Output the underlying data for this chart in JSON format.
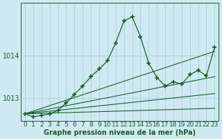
{
  "title": "Graphe pression niveau de la mer (hPa)",
  "background_color": "#ceeaf0",
  "grid_color": "#a8d0da",
  "line_color": "#1a5c2a",
  "xlim": [
    -0.5,
    23.5
  ],
  "ylim": [
    1012.45,
    1015.25
  ],
  "yticks": [
    1013,
    1014
  ],
  "xticks": [
    0,
    1,
    2,
    3,
    4,
    5,
    6,
    7,
    8,
    9,
    10,
    11,
    12,
    13,
    14,
    15,
    16,
    17,
    18,
    19,
    20,
    21,
    22,
    23
  ],
  "x_label_fontsize": 6.5,
  "y_label_fontsize": 7,
  "title_fontsize": 7,
  "series": [
    {
      "x": [
        0,
        23
      ],
      "y": [
        1012.62,
        1012.75
      ],
      "style": "line_only",
      "linewidth": 0.8
    },
    {
      "x": [
        0,
        23
      ],
      "y": [
        1012.62,
        1013.1
      ],
      "style": "line_only",
      "linewidth": 0.8
    },
    {
      "x": [
        0,
        23
      ],
      "y": [
        1012.62,
        1013.5
      ],
      "style": "line_only",
      "linewidth": 0.8
    },
    {
      "x": [
        0,
        23
      ],
      "y": [
        1012.62,
        1014.1
      ],
      "style": "line_only",
      "linewidth": 0.8
    },
    {
      "x": [
        0,
        1,
        2,
        3,
        4,
        5,
        6,
        7,
        8,
        9,
        10,
        11,
        12,
        13,
        14,
        15,
        16,
        17,
        18,
        19,
        20,
        21,
        22,
        23
      ],
      "y": [
        1012.62,
        1012.55,
        1012.58,
        1012.62,
        1012.7,
        1012.88,
        1013.08,
        1013.28,
        1013.5,
        1013.68,
        1013.88,
        1014.3,
        1014.82,
        1014.92,
        1014.45,
        1013.82,
        1013.48,
        1013.28,
        1013.38,
        1013.32,
        1013.55,
        1013.65,
        1013.52,
        1014.2
      ],
      "style": "line_marker",
      "linewidth": 0.9,
      "marker": "+",
      "markersize": 4
    }
  ]
}
